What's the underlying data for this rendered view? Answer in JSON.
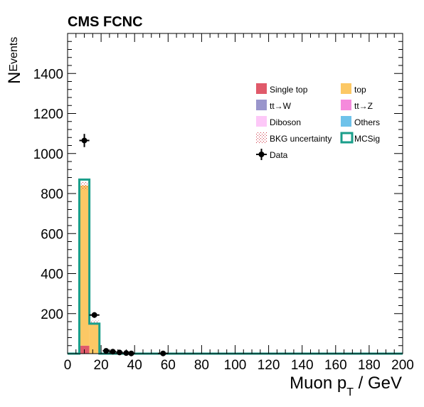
{
  "chart_data": {
    "type": "bar",
    "title": "CMS FCNC",
    "xlabel": {
      "main": "Muon p",
      "sub": "T",
      "unit": " / GeV"
    },
    "ylabel": {
      "main": "N",
      "sub": "Events"
    },
    "xlim": [
      0,
      200
    ],
    "ylim": [
      0,
      1600
    ],
    "x_ticks": [
      0,
      20,
      40,
      60,
      80,
      100,
      120,
      140,
      160,
      180,
      200
    ],
    "y_ticks": [
      200,
      400,
      600,
      800,
      1000,
      1200,
      1400
    ],
    "grid": false,
    "legend_position": "top-right",
    "bin_edges": [
      7,
      13,
      19
    ],
    "stacks": [
      {
        "name": "Single top",
        "color": "#e05a6a",
        "values": [
          40,
          0
        ]
      },
      {
        "name": "top",
        "color": "#fcc865",
        "values": [
          800,
          150
        ]
      }
    ],
    "bkg_uncertainty": {
      "name": "BKG uncertainty",
      "color": "#cc3344",
      "low": [
        820,
        145
      ],
      "high": [
        860,
        165
      ]
    },
    "signal": {
      "name": "MCSig",
      "color": "#1a9e8a",
      "edges": [
        7,
        13,
        19,
        200
      ],
      "values": [
        870,
        150,
        0
      ]
    },
    "data": {
      "name": "Data",
      "points": [
        {
          "x": 10,
          "y": 1065,
          "xerr": 3,
          "yerr": 33
        },
        {
          "x": 16,
          "y": 193,
          "xerr": 3,
          "yerr": 14
        },
        {
          "x": 23,
          "y": 14,
          "xerr": 2,
          "yerr": 4
        },
        {
          "x": 27,
          "y": 10,
          "xerr": 2,
          "yerr": 3
        },
        {
          "x": 31,
          "y": 6,
          "xerr": 2,
          "yerr": 2
        },
        {
          "x": 35,
          "y": 3,
          "xerr": 2,
          "yerr": 2
        },
        {
          "x": 38,
          "y": 1,
          "xerr": 2,
          "yerr": 1
        },
        {
          "x": 57,
          "y": 1,
          "xerr": 3,
          "yerr": 1
        }
      ]
    },
    "legend": [
      {
        "label": "Single top",
        "kind": "fill",
        "color": "#e05a6a"
      },
      {
        "label": "top",
        "kind": "fill",
        "color": "#fcc865"
      },
      {
        "label": "tt→W",
        "kind": "fill",
        "color": "#9a96cc"
      },
      {
        "label": "tt→Z",
        "kind": "fill",
        "color": "#f58adc"
      },
      {
        "label": "Diboson",
        "kind": "fill",
        "color": "#fdc8f8"
      },
      {
        "label": "Others",
        "kind": "fill",
        "color": "#6ec2ea"
      },
      {
        "label": "BKG uncertainty",
        "kind": "hatch",
        "color": "#cc3344"
      },
      {
        "label": "MCSig",
        "kind": "line",
        "color": "#1a9e8a"
      },
      {
        "label": "Data",
        "kind": "marker",
        "color": "#000000"
      }
    ]
  }
}
